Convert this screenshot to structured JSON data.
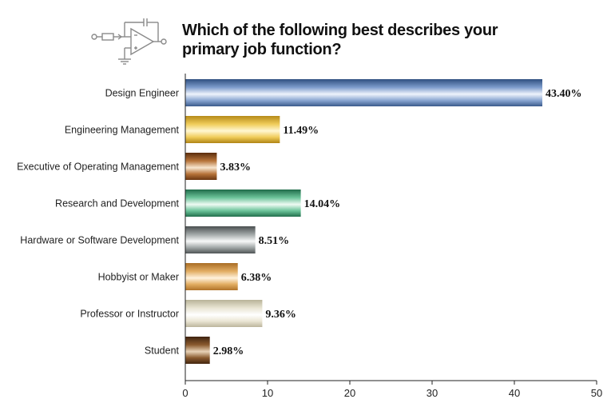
{
  "chart_data": {
    "type": "bar",
    "orientation": "horizontal",
    "title": "Which of the following best describes your primary job function?",
    "title_lines": [
      "Which of the following best describes your",
      "primary job function?"
    ],
    "categories": [
      "Design Engineer",
      "Engineering Management",
      "Executive of Operating Management",
      "Research and Development",
      "Hardware or Software Development",
      "Hobbyist or Maker",
      "Professor or Instructor",
      "Student"
    ],
    "values": [
      43.4,
      11.49,
      3.83,
      14.04,
      8.51,
      6.38,
      9.36,
      2.98
    ],
    "value_labels": [
      "43.40%",
      "11.49%",
      "3.83%",
      "14.04%",
      "8.51%",
      "6.38%",
      "9.36%",
      "2.98%"
    ],
    "bar_colors": [
      [
        "#2f4f80",
        "#7d9ccc",
        "#eef3fb",
        "#8aa6d2",
        "#3a5a8c"
      ],
      [
        "#b58a18",
        "#f0cc5a",
        "#fff7d2",
        "#f0cc5a",
        "#b08414"
      ],
      [
        "#5a2c0c",
        "#b7743a",
        "#f8e6cf",
        "#b7743a",
        "#6a3610"
      ],
      [
        "#1f6b49",
        "#6cc49a",
        "#effaf3",
        "#6cc49a",
        "#226f4c"
      ],
      [
        "#4a4f50",
        "#a2a8a8",
        "#f7f8f8",
        "#a2a8a8",
        "#4f5455"
      ],
      [
        "#a86c24",
        "#e2ad62",
        "#fff2dc",
        "#e2ad62",
        "#b07228"
      ],
      [
        "#b8b298",
        "#e9e5d3",
        "#ffffff",
        "#ebe6d5",
        "#bcb59c"
      ],
      [
        "#3e2210",
        "#8a5a2e",
        "#e8d2b6",
        "#8a5a2e",
        "#43250f"
      ]
    ],
    "xlim": [
      0,
      50
    ],
    "xticks": [
      0,
      10,
      20,
      30,
      40,
      50
    ],
    "xlabel": "",
    "ylabel": "",
    "grid": false,
    "legend": "none"
  }
}
